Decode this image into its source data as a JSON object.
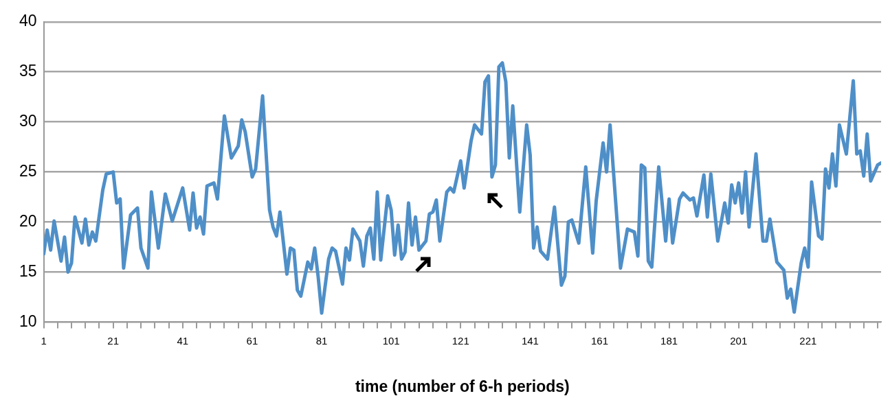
{
  "chart_data": {
    "type": "line",
    "xlabel": "time (number of 6-h periods)",
    "x": [
      1,
      2,
      3,
      4,
      6,
      7,
      8,
      9,
      10,
      12,
      13,
      14,
      15,
      16,
      18,
      19,
      21,
      22,
      23,
      24,
      26,
      28,
      29,
      31,
      32,
      34,
      36,
      38,
      41,
      43,
      44,
      45,
      46,
      47,
      48,
      50,
      51,
      53,
      55,
      57,
      58,
      59,
      61,
      62,
      64,
      66,
      67,
      68,
      69,
      71,
      72,
      73,
      74,
      75,
      77,
      78,
      79,
      80,
      81,
      83,
      84,
      85,
      87,
      88,
      89,
      90,
      92,
      93,
      94,
      95,
      96,
      97,
      98,
      100,
      101,
      102,
      103,
      104,
      105,
      106,
      107,
      108,
      109,
      111,
      112,
      113,
      114,
      115,
      117,
      118,
      119,
      121,
      122,
      124,
      125,
      127,
      128,
      129,
      130,
      131,
      132,
      133,
      134,
      135,
      136,
      138,
      140,
      141,
      142,
      143,
      144,
      146,
      148,
      150,
      151,
      152,
      153,
      155,
      157,
      159,
      160,
      162,
      163,
      164,
      167,
      169,
      171,
      172,
      173,
      174,
      175,
      176,
      178,
      180,
      181,
      182,
      184,
      185,
      187,
      188,
      189,
      191,
      192,
      193,
      195,
      197,
      198,
      199,
      200,
      201,
      202,
      203,
      204,
      206,
      208,
      209,
      210,
      212,
      214,
      215,
      216,
      217,
      219,
      220,
      221,
      222,
      224,
      225,
      226,
      227,
      228,
      229,
      230,
      232,
      234,
      235,
      236,
      237,
      238,
      239,
      241,
      242
    ],
    "series": [
      {
        "color": "#4f8fc8",
        "values": [
          16.8,
          19.2,
          17.2,
          20.1,
          16.1,
          18.5,
          15.0,
          15.9,
          20.5,
          17.9,
          20.3,
          17.7,
          19.0,
          18.1,
          23.2,
          24.8,
          25.0,
          21.9,
          22.3,
          15.4,
          20.7,
          21.4,
          17.4,
          15.4,
          23.0,
          17.4,
          22.8,
          20.1,
          23.4,
          19.2,
          22.9,
          19.4,
          20.5,
          18.8,
          23.6,
          23.9,
          22.3,
          30.6,
          26.4,
          27.6,
          30.2,
          29.0,
          24.5,
          25.3,
          32.6,
          21.2,
          19.5,
          18.6,
          21.0,
          14.8,
          17.4,
          17.2,
          13.2,
          12.6,
          16.0,
          15.3,
          17.4,
          14.5,
          10.9,
          16.3,
          17.4,
          17.1,
          13.8,
          17.4,
          16.2,
          19.3,
          18.1,
          15.6,
          18.6,
          19.4,
          16.3,
          23.0,
          16.2,
          22.6,
          21.2,
          16.7,
          19.7,
          16.3,
          17.0,
          21.9,
          17.7,
          20.5,
          17.2,
          18.1,
          20.8,
          21.0,
          22.2,
          18.1,
          23.0,
          23.4,
          23.0,
          26.1,
          23.4,
          28.1,
          29.7,
          28.8,
          34.0,
          34.6,
          24.5,
          25.7,
          35.5,
          35.9,
          34.0,
          26.4,
          31.6,
          21.0,
          29.7,
          26.7,
          17.4,
          19.5,
          17.1,
          16.3,
          21.5,
          13.7,
          14.6,
          20.0,
          20.2,
          17.9,
          25.5,
          16.9,
          22.1,
          27.9,
          25.0,
          29.7,
          15.4,
          19.3,
          19.0,
          16.6,
          25.7,
          25.4,
          16.1,
          15.5,
          25.5,
          18.1,
          22.3,
          17.9,
          22.3,
          22.9,
          22.2,
          22.4,
          20.6,
          24.7,
          20.5,
          24.8,
          18.1,
          21.9,
          19.9,
          23.7,
          21.9,
          23.9,
          20.9,
          25.0,
          19.5,
          26.8,
          18.1,
          18.1,
          20.3,
          16.0,
          15.2,
          12.4,
          13.3,
          11.0,
          15.9,
          17.4,
          15.5,
          24.0,
          18.6,
          18.3,
          25.3,
          23.4,
          26.8,
          23.6,
          29.7,
          26.8,
          34.1,
          26.8,
          27.1,
          24.6,
          28.8,
          24.1,
          25.7,
          25.9
        ]
      }
    ],
    "xlim": [
      1,
      242
    ],
    "xticks": [
      1,
      {
        "value": 5,
        "label": null
      },
      {
        "value": 9,
        "label": null
      },
      {
        "value": 13,
        "label": null
      },
      {
        "value": 17,
        "label": null
      },
      21,
      {
        "value": 25,
        "label": null
      },
      {
        "value": 29,
        "label": null
      },
      {
        "value": 33,
        "label": null
      },
      {
        "value": 37,
        "label": null
      },
      41,
      {
        "value": 45,
        "label": null
      },
      {
        "value": 49,
        "label": null
      },
      {
        "value": 53,
        "label": null
      },
      {
        "value": 57,
        "label": null
      },
      61,
      {
        "value": 65,
        "label": null
      },
      {
        "value": 69,
        "label": null
      },
      {
        "value": 73,
        "label": null
      },
      {
        "value": 77,
        "label": null
      },
      81,
      {
        "value": 85,
        "label": null
      },
      {
        "value": 89,
        "label": null
      },
      {
        "value": 93,
        "label": null
      },
      {
        "value": 97,
        "label": null
      },
      101,
      {
        "value": 105,
        "label": null
      },
      {
        "value": 109,
        "label": null
      },
      {
        "value": 113,
        "label": null
      },
      {
        "value": 117,
        "label": null
      },
      121,
      {
        "value": 125,
        "label": null
      },
      {
        "value": 129,
        "label": null
      },
      {
        "value": 133,
        "label": null
      },
      {
        "value": 137,
        "label": null
      },
      141,
      {
        "value": 145,
        "label": null
      },
      {
        "value": 149,
        "label": null
      },
      {
        "value": 153,
        "label": null
      },
      {
        "value": 157,
        "label": null
      },
      161,
      {
        "value": 165,
        "label": null
      },
      {
        "value": 169,
        "label": null
      },
      {
        "value": 173,
        "label": null
      },
      {
        "value": 177,
        "label": null
      },
      181,
      {
        "value": 185,
        "label": null
      },
      {
        "value": 189,
        "label": null
      },
      {
        "value": 193,
        "label": null
      },
      {
        "value": 197,
        "label": null
      },
      201,
      {
        "value": 205,
        "label": null
      },
      {
        "value": 209,
        "label": null
      },
      {
        "value": 213,
        "label": null
      },
      {
        "value": 217,
        "label": null
      },
      221,
      {
        "value": 225,
        "label": null
      },
      {
        "value": 229,
        "label": null
      },
      {
        "value": 233,
        "label": null
      },
      {
        "value": 237,
        "label": null
      },
      {
        "value": 241,
        "label": null
      }
    ],
    "ylim": [
      10,
      40
    ],
    "yticks": [
      10,
      15,
      20,
      25,
      30,
      35,
      40
    ],
    "grid": "y",
    "marker": "none",
    "line_style": "solid"
  }
}
